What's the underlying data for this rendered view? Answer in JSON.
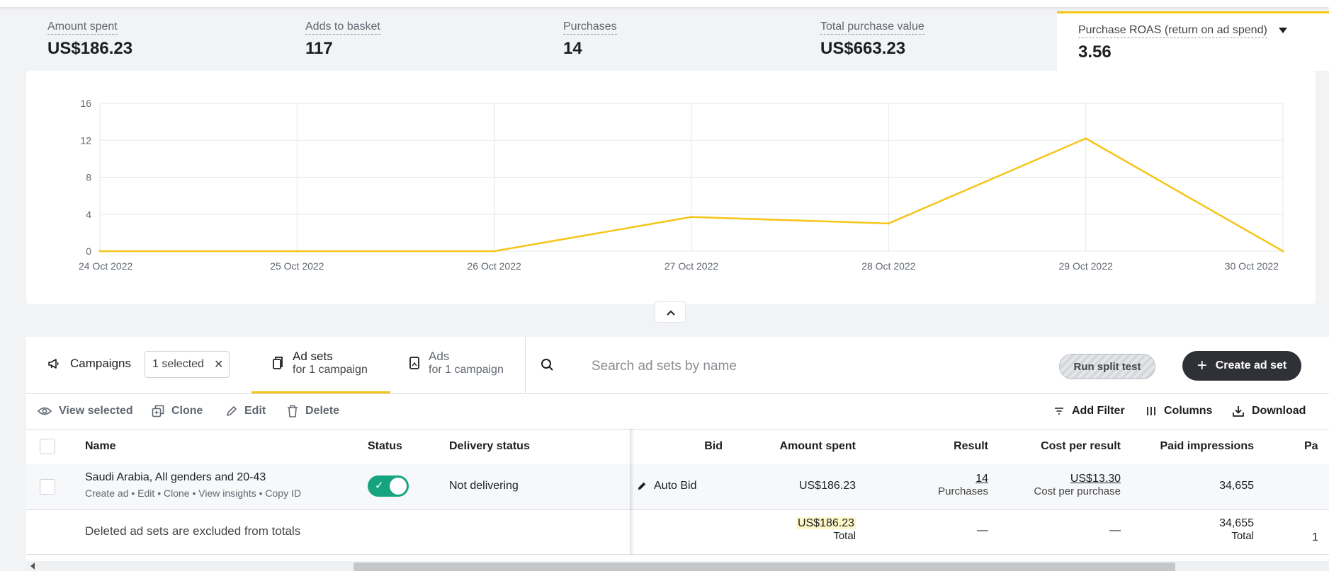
{
  "metrics": [
    {
      "label": "Amount spent",
      "value": "US$186.23"
    },
    {
      "label": "Adds to basket",
      "value": "117"
    },
    {
      "label": "Purchases",
      "value": "14"
    },
    {
      "label": "Total purchase value",
      "value": "US$663.23"
    },
    {
      "label": "Purchase ROAS (return on ad spend)",
      "value": "3.56"
    }
  ],
  "chart_data": {
    "type": "line",
    "categories": [
      "24 Oct 2022",
      "25 Oct 2022",
      "26 Oct 2022",
      "27 Oct 2022",
      "28 Oct 2022",
      "29 Oct 2022",
      "30 Oct 2022"
    ],
    "series": [
      {
        "values": [
          0,
          0,
          0,
          3.7,
          3.0,
          12.2,
          0
        ],
        "color": "#f5c518"
      }
    ],
    "yticks": [
      "0",
      "4",
      "8",
      "12",
      "16"
    ],
    "ylim": [
      0,
      16
    ],
    "grid": true
  },
  "tabs": {
    "campaigns": "Campaigns",
    "selected_chip": "1 selected",
    "adsets_title": "Ad sets",
    "adsets_sub": "for 1 campaign",
    "ads_title": "Ads",
    "ads_sub": "for 1 campaign"
  },
  "search": {
    "placeholder": "Search ad sets by name"
  },
  "buttons": {
    "split": "Run split test",
    "create": "Create ad set"
  },
  "toolbar": {
    "view_selected": "View selected",
    "clone": "Clone",
    "edit": "Edit",
    "delete": "Delete",
    "add_filter": "Add Filter",
    "columns": "Columns",
    "download": "Download"
  },
  "table": {
    "headers": {
      "name": "Name",
      "status": "Status",
      "delivery": "Delivery status",
      "bid": "Bid",
      "amount": "Amount spent",
      "result": "Result",
      "cpr": "Cost per result",
      "impressions": "Paid impressions",
      "cut": "Pa"
    },
    "row": {
      "name": "Saudi Arabia, All genders and 20-43",
      "actions": [
        "Create ad",
        "Edit",
        "Clone",
        "View insights",
        "Copy ID"
      ],
      "delivery": "Not delivering",
      "bid": "Auto Bid",
      "amount": "US$186.23",
      "result_value": "14",
      "result_label": "Purchases",
      "cpr_value": "US$13.30",
      "cpr_label": "Cost per purchase",
      "impressions": "34,655"
    },
    "totals": {
      "note": "Deleted ad sets are excluded from totals",
      "amount": "US$186.23",
      "amount_label": "Total",
      "result": "—",
      "cpr": "—",
      "impressions": "34,655",
      "impressions_label": "Total",
      "cut": "1"
    }
  }
}
